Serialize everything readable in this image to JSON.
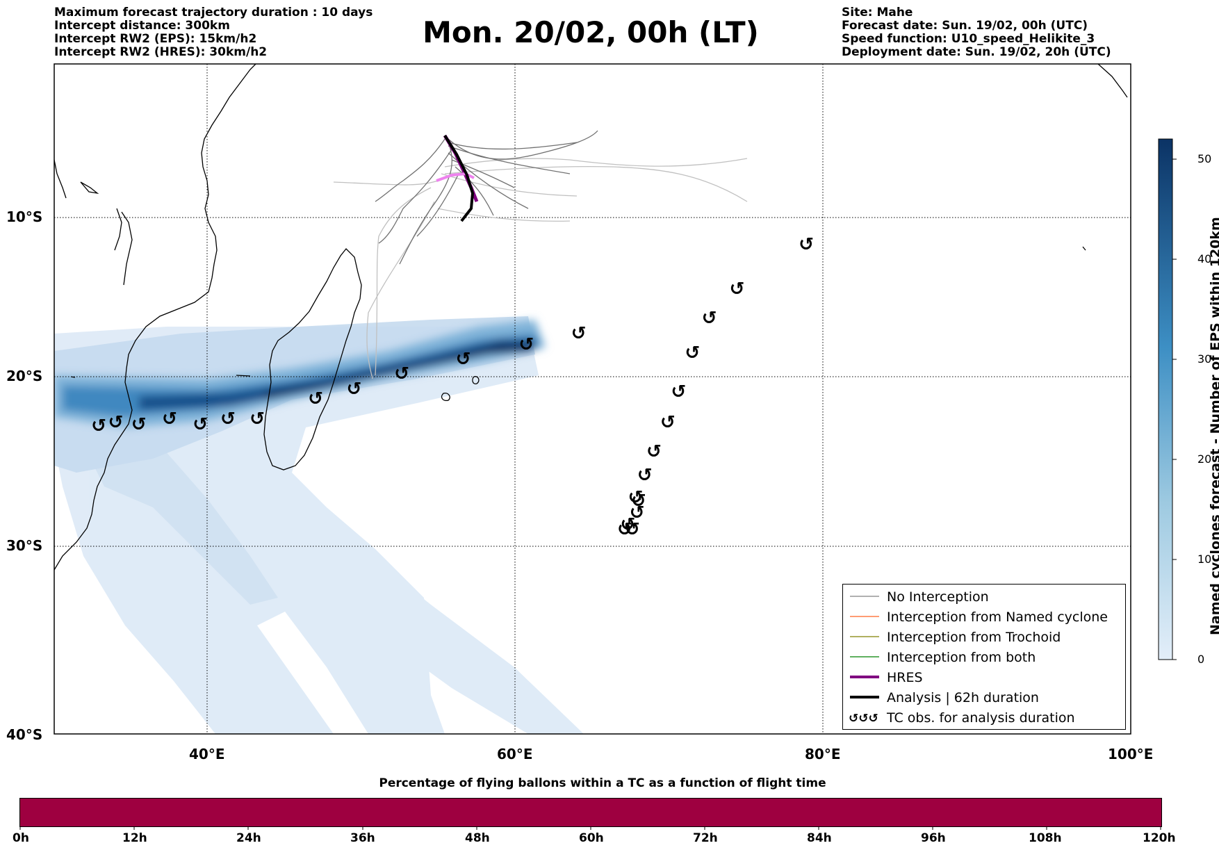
{
  "header_left": [
    "Maximum forecast trajectory duration : 10 days",
    "Intercept distance: 300km",
    "Intercept RW2 (EPS):  15km/h2",
    "Intercept RW2 (HRES): 30km/h2"
  ],
  "header_right": [
    "Site: Mahe",
    "Forecast date: Sun. 19/02, 00h (UTC)",
    "Speed function: U10_speed_Helikite_3",
    "Deployment date: Sun. 19/02, 20h (UTC)"
  ],
  "title": "Mon. 20/02, 00h (LT)",
  "map": {
    "lon_range": [
      30,
      100
    ],
    "lat_range": [
      0,
      -40
    ],
    "lat_labels": [
      "10°S",
      "20°S",
      "30°S",
      "40°S"
    ],
    "lon_labels": [
      "40°E",
      "60°E",
      "80°E",
      "100°E"
    ]
  },
  "legend": {
    "items": [
      {
        "label": "No Interception",
        "color": "#808080"
      },
      {
        "label": "Interception from Named cyclone",
        "color": "#ff6020"
      },
      {
        "label": "Interception from Trochoid",
        "color": "#808000"
      },
      {
        "label": "Interception from both",
        "color": "#008000"
      },
      {
        "label": "HRES",
        "color": "#800080"
      },
      {
        "label": "Analysis | 62h duration",
        "color": "#000000"
      },
      {
        "label": "TC obs. for analysis duration",
        "color": "#000000",
        "symbol": "cyclone-icon"
      }
    ]
  },
  "colorbar": {
    "label": "Named cyclones forecast - Number of EPS within 120km",
    "ticks": [
      "0",
      "10",
      "20",
      "30",
      "40",
      "50"
    ],
    "range": [
      0,
      52
    ]
  },
  "bottom": {
    "title": "Percentage of flying ballons within a TC as a function of flight time",
    "bar_color": "#9e0040",
    "hour_labels": [
      "0h",
      "12h",
      "24h",
      "36h",
      "48h",
      "60h",
      "72h",
      "84h",
      "96h",
      "108h",
      "120h"
    ]
  },
  "cyclone_symbol": "↺",
  "chart_data": {
    "type": "map",
    "tc_track_analysis": [
      {
        "lon": 32.9,
        "lat": -23.0
      },
      {
        "lon": 34.0,
        "lat": -22.8
      },
      {
        "lon": 35.5,
        "lat": -22.9
      },
      {
        "lon": 37.5,
        "lat": -22.6
      },
      {
        "lon": 39.5,
        "lat": -22.9
      },
      {
        "lon": 41.3,
        "lat": -22.6
      },
      {
        "lon": 43.2,
        "lat": -22.6
      },
      {
        "lon": 47.0,
        "lat": -21.4
      },
      {
        "lon": 49.5,
        "lat": -20.8
      },
      {
        "lon": 52.6,
        "lat": -19.9
      },
      {
        "lon": 56.6,
        "lat": -19.0
      },
      {
        "lon": 60.7,
        "lat": -18.1
      }
    ],
    "tc_track_second": [
      {
        "lon": 64.1,
        "lat": -17.4
      },
      {
        "lon": 78.9,
        "lat": -11.8
      },
      {
        "lon": 74.4,
        "lat": -14.6
      },
      {
        "lon": 72.6,
        "lat": -16.4
      },
      {
        "lon": 71.5,
        "lat": -18.6
      },
      {
        "lon": 70.6,
        "lat": -21.0
      },
      {
        "lon": 69.9,
        "lat": -22.8
      },
      {
        "lon": 69.0,
        "lat": -24.5
      },
      {
        "lon": 68.4,
        "lat": -25.9
      },
      {
        "lon": 67.8,
        "lat": -27.2
      },
      {
        "lon": 68.0,
        "lat": -27.4
      },
      {
        "lon": 67.9,
        "lat": -28.1
      },
      {
        "lon": 67.3,
        "lat": -28.8
      },
      {
        "lon": 67.1,
        "lat": -29.1
      },
      {
        "lon": 67.6,
        "lat": -29.1
      }
    ],
    "hres_track": [
      {
        "lon": 55.5,
        "lat": -4.8
      },
      {
        "lon": 56.2,
        "lat": -6.2
      },
      {
        "lon": 56.9,
        "lat": -7.5
      },
      {
        "lon": 57.3,
        "lat": -8.5
      },
      {
        "lon": 57.7,
        "lat": -9.2
      }
    ],
    "analysis_track": [
      {
        "lon": 55.5,
        "lat": -4.8
      },
      {
        "lon": 56.3,
        "lat": -6.0
      },
      {
        "lon": 56.9,
        "lat": -7.3
      },
      {
        "lon": 57.2,
        "lat": -8.5
      },
      {
        "lon": 57.1,
        "lat": -9.7
      },
      {
        "lon": 56.6,
        "lat": -10.4
      }
    ]
  }
}
